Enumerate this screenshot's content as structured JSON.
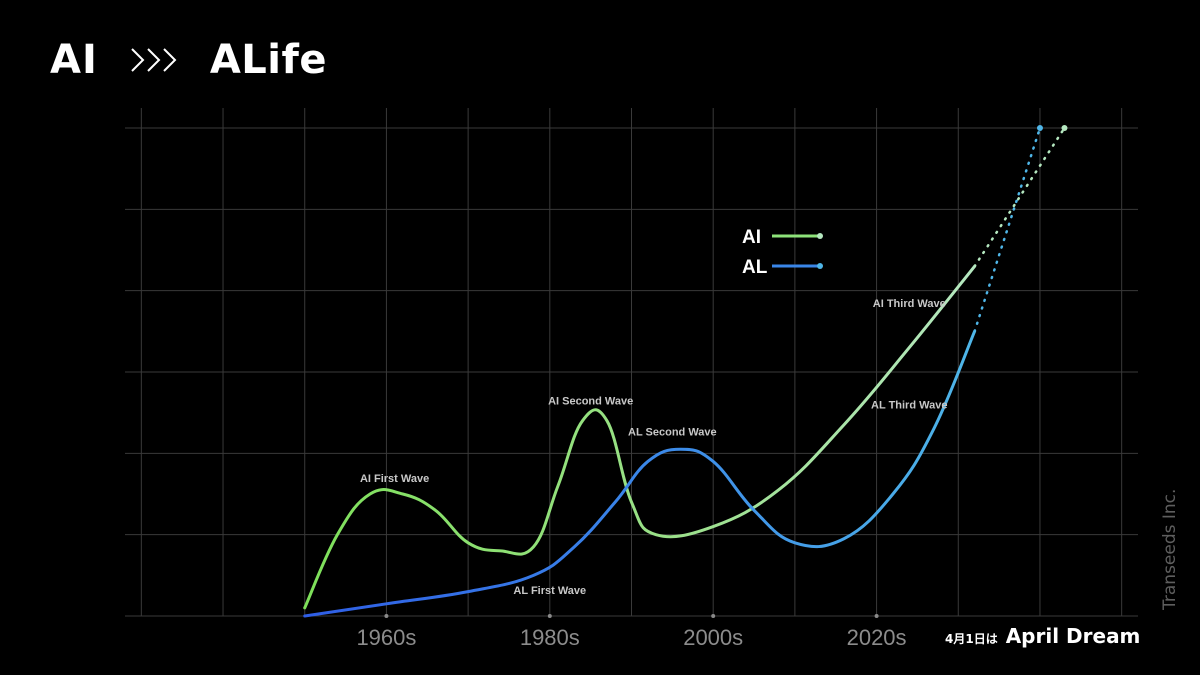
{
  "title": {
    "left": "AI",
    "right": "ALife"
  },
  "colors": {
    "ai": "#8ee37a",
    "al": "#3a86e8",
    "al_light": "#4fb6e8",
    "grid": "#3a3a3a",
    "bg": "#000000"
  },
  "chart_data": {
    "type": "line",
    "x_tick_labels": [
      "1960s",
      "1980s",
      "2000s",
      "2020s"
    ],
    "x_ticks": [
      1960,
      1980,
      2000,
      2020
    ],
    "xlim": [
      1928,
      2052
    ],
    "ylim": [
      0,
      6
    ],
    "grid": true,
    "legend_position": "upper-middle",
    "series": [
      {
        "name": "AI",
        "color": "#8ee37a",
        "points": [
          [
            1950,
            0.1
          ],
          [
            1954,
            1.0
          ],
          [
            1958,
            1.5
          ],
          [
            1962,
            1.5
          ],
          [
            1966,
            1.3
          ],
          [
            1970,
            0.9
          ],
          [
            1974,
            0.8
          ],
          [
            1978,
            0.85
          ],
          [
            1981,
            1.6
          ],
          [
            1984,
            2.4
          ],
          [
            1987,
            2.4
          ],
          [
            1990,
            1.4
          ],
          [
            1993,
            1.0
          ],
          [
            2000,
            1.1
          ],
          [
            2008,
            1.55
          ],
          [
            2016,
            2.35
          ],
          [
            2024,
            3.3
          ],
          [
            2032,
            4.3
          ]
        ],
        "projection": [
          [
            2032,
            4.3
          ],
          [
            2043,
            6.0
          ]
        ]
      },
      {
        "name": "AL",
        "color": "#3a86e8",
        "points": [
          [
            1950,
            0.0
          ],
          [
            1960,
            0.15
          ],
          [
            1970,
            0.3
          ],
          [
            1978,
            0.5
          ],
          [
            1983,
            0.85
          ],
          [
            1988,
            1.4
          ],
          [
            1992,
            1.9
          ],
          [
            1996,
            2.05
          ],
          [
            2000,
            1.9
          ],
          [
            2005,
            1.3
          ],
          [
            2010,
            0.9
          ],
          [
            2016,
            0.95
          ],
          [
            2022,
            1.5
          ],
          [
            2027,
            2.3
          ],
          [
            2032,
            3.5
          ]
        ],
        "projection": [
          [
            2032,
            3.5
          ],
          [
            2040,
            6.0
          ]
        ]
      }
    ],
    "annotations": [
      {
        "text": "AI First Wave",
        "x": 1961,
        "y": 1.65
      },
      {
        "text": "AI Second Wave",
        "x": 1985,
        "y": 2.6
      },
      {
        "text": "AL Second Wave",
        "x": 1995,
        "y": 2.22
      },
      {
        "text": "AL First Wave",
        "x": 1980,
        "y": 0.27
      },
      {
        "text": "AI Third Wave",
        "x": 2024,
        "y": 3.8
      },
      {
        "text": "AL Third Wave",
        "x": 2024,
        "y": 2.55
      }
    ]
  },
  "watermark": "Transeeds Inc.",
  "footer": {
    "small": "4月1日は",
    "big": "April Dream"
  }
}
